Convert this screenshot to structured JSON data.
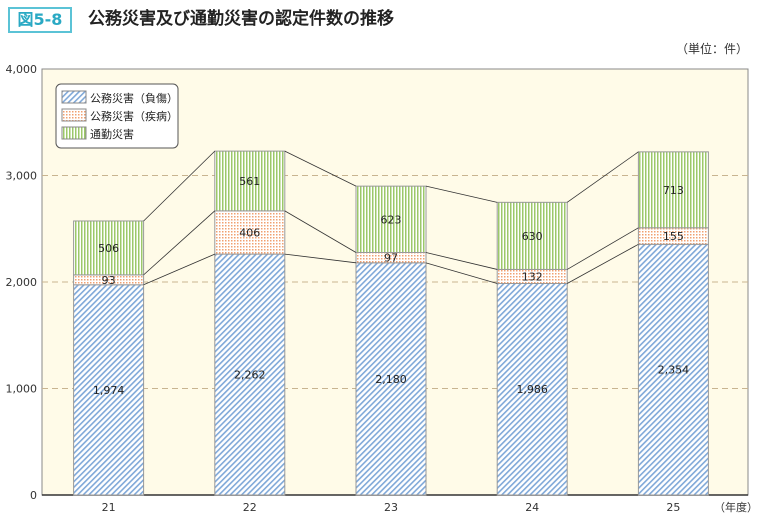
{
  "figure_label": "図5-8",
  "title": "公務災害及び通勤災害の認定件数の推移",
  "unit": "（単位：件）",
  "chart_data": {
    "type": "bar",
    "stacked": true,
    "categories": [
      "21",
      "22",
      "23",
      "24",
      "25"
    ],
    "xlabel": "（年度）",
    "ylim": [
      0,
      4000
    ],
    "yticks": [
      "0",
      "1,000",
      "2,000",
      "3,000",
      "4,000"
    ],
    "grid": true,
    "legend_position": "top-left",
    "series": [
      {
        "name": "公務災害（負傷）",
        "values": [
          1974,
          2262,
          2180,
          1986,
          2354
        ],
        "labels": [
          "1,974",
          "2,262",
          "2,180",
          "1,986",
          "2,354"
        ],
        "color": "#7fa8d8",
        "pattern": "diagonal-hatch"
      },
      {
        "name": "公務災害（疾病）",
        "values": [
          93,
          406,
          97,
          132,
          155
        ],
        "labels": [
          "93",
          "406",
          "97",
          "132",
          "155"
        ],
        "color": "#f0a070",
        "pattern": "dots"
      },
      {
        "name": "通勤災害",
        "values": [
          506,
          561,
          623,
          630,
          713
        ],
        "labels": [
          "506",
          "561",
          "623",
          "630",
          "713"
        ],
        "color": "#9cc86a",
        "pattern": "vertical-lines"
      }
    ]
  }
}
